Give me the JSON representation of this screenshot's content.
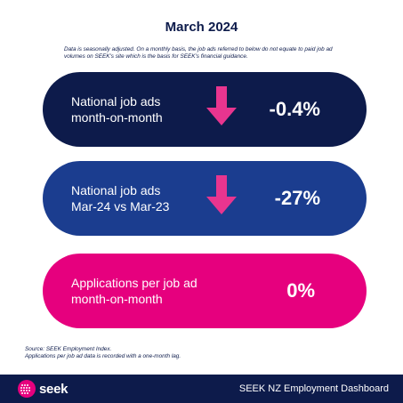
{
  "title": "March 2024",
  "disclaimer": "Data is seasonally adjusted. On a monthly basis, the job ads referred to below do not equate to paid job ad volumes on SEEK's site which is the basis for SEEK's financial guidance.",
  "cards": [
    {
      "line1": "National job ads",
      "line2": "month-on-month",
      "value": "-0.4%",
      "arrow": "down",
      "color": "#0d1b4b"
    },
    {
      "line1": "National job ads",
      "line2": "Mar-24 vs Mar-23",
      "value": "-27%",
      "arrow": "down",
      "color": "#1b3d8f"
    },
    {
      "line1": "Applications per job ad",
      "line2": "month-on-month",
      "value": "0%",
      "arrow": "none",
      "color": "#e6007e"
    }
  ],
  "source": {
    "line1": "Source: SEEK Employment Index.",
    "line2": "Applications per job ad data is recorded with a one-month lag."
  },
  "footer": {
    "logo_text": "seek",
    "title": "SEEK NZ Employment Dashboard"
  },
  "colors": {
    "navy": "#0d1b4b",
    "blue": "#1b3d8f",
    "pink": "#e6007e",
    "arrow_pink": "#e8358f"
  },
  "icons": {
    "arrow": "arrow-down-icon",
    "logo": "seek-logo-icon"
  }
}
